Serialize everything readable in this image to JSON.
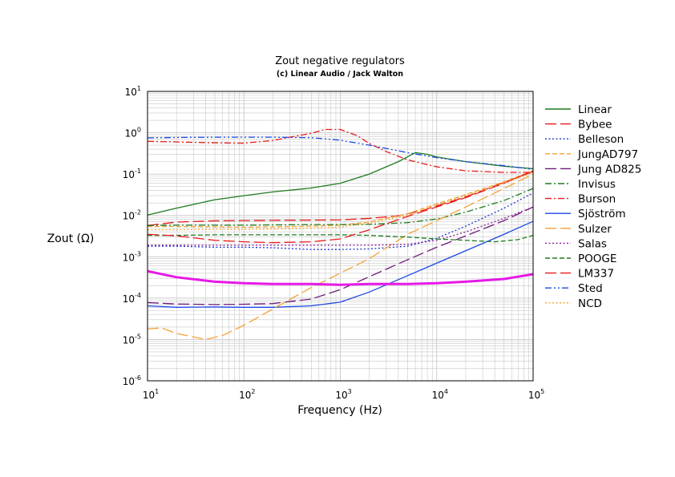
{
  "chart_data": {
    "type": "line",
    "title": "Zout negative regulators",
    "subtitle": "(c) Linear Audio / Jack Walton",
    "xlabel": "Frequency (Hz)",
    "ylabel": "Zout (Ω)",
    "x_scale": "log",
    "y_scale": "log",
    "xlim": [
      10,
      100000
    ],
    "ylim": [
      1e-06,
      10
    ],
    "x_ticks": [
      {
        "base": "10",
        "exp": "1"
      },
      {
        "base": "10",
        "exp": "2"
      },
      {
        "base": "10",
        "exp": "3"
      },
      {
        "base": "10",
        "exp": "4"
      },
      {
        "base": "10",
        "exp": "5"
      }
    ],
    "y_ticks": [
      {
        "base": "10",
        "exp": "1"
      },
      {
        "base": "10",
        "exp": "0"
      },
      {
        "base": "10",
        "exp": "-1"
      },
      {
        "base": "10",
        "exp": "-2"
      },
      {
        "base": "10",
        "exp": "-3"
      },
      {
        "base": "10",
        "exp": "-4"
      },
      {
        "base": "10",
        "exp": "-5"
      },
      {
        "base": "10",
        "exp": "-6"
      }
    ],
    "grid": true,
    "legend_position": "right",
    "series": [
      {
        "name": "Linear",
        "color": "#1e7b1e",
        "dash": "solid",
        "width": 1.3,
        "points": [
          [
            10,
            0.0102
          ],
          [
            20,
            0.015
          ],
          [
            50,
            0.024
          ],
          [
            100,
            0.03
          ],
          [
            200,
            0.037
          ],
          [
            500,
            0.046
          ],
          [
            1000,
            0.06
          ],
          [
            2000,
            0.1
          ],
          [
            4000,
            0.2
          ],
          [
            6000,
            0.33
          ],
          [
            8000,
            0.3
          ],
          [
            10000,
            0.26
          ],
          [
            20000,
            0.2
          ],
          [
            50000,
            0.155
          ],
          [
            100000,
            0.135
          ]
        ]
      },
      {
        "name": "Bybee",
        "color": "#e8191a",
        "dash": "long-dash",
        "width": 1.3,
        "points": [
          [
            10,
            0.0057
          ],
          [
            20,
            0.0069
          ],
          [
            50,
            0.0074
          ],
          [
            100,
            0.0075
          ],
          [
            200,
            0.0076
          ],
          [
            500,
            0.0077
          ],
          [
            1000,
            0.0078
          ],
          [
            2000,
            0.0085
          ],
          [
            4000,
            0.0098
          ],
          [
            7000,
            0.013
          ],
          [
            10000,
            0.017
          ],
          [
            20000,
            0.028
          ],
          [
            50000,
            0.063
          ],
          [
            100000,
            0.115
          ]
        ]
      },
      {
        "name": "Belleson",
        "color": "#1a33cc",
        "dash": "dot",
        "width": 1.3,
        "points": [
          [
            10,
            0.0018
          ],
          [
            20,
            0.0018
          ],
          [
            50,
            0.0017
          ],
          [
            100,
            0.0017
          ],
          [
            200,
            0.00165
          ],
          [
            500,
            0.0015
          ],
          [
            1000,
            0.0015
          ],
          [
            2000,
            0.00155
          ],
          [
            5000,
            0.0018
          ],
          [
            10000,
            0.0028
          ],
          [
            20000,
            0.0055
          ],
          [
            50000,
            0.015
          ],
          [
            100000,
            0.035
          ]
        ]
      },
      {
        "name": "JungAD797",
        "color": "#f4a236",
        "dash": "dash",
        "width": 1.3,
        "points": [
          [
            10,
            0.0054
          ],
          [
            20,
            0.0054
          ],
          [
            50,
            0.0053
          ],
          [
            100,
            0.0052
          ],
          [
            200,
            0.0053
          ],
          [
            500,
            0.0055
          ],
          [
            1000,
            0.0058
          ],
          [
            2000,
            0.007
          ],
          [
            5000,
            0.011
          ],
          [
            10000,
            0.019
          ],
          [
            20000,
            0.032
          ],
          [
            50000,
            0.065
          ],
          [
            100000,
            0.12
          ]
        ]
      },
      {
        "name": "Jung AD825",
        "color": "#6e1a78",
        "dash": "long-dash",
        "width": 1.3,
        "points": [
          [
            10,
            7.8e-05
          ],
          [
            20,
            7.2e-05
          ],
          [
            50,
            7e-05
          ],
          [
            100,
            7.1e-05
          ],
          [
            200,
            7.4e-05
          ],
          [
            500,
            9.5e-05
          ],
          [
            1000,
            0.00016
          ],
          [
            2000,
            0.00033
          ],
          [
            5000,
            0.00085
          ],
          [
            10000,
            0.0017
          ],
          [
            20000,
            0.0032
          ],
          [
            50000,
            0.0075
          ],
          [
            100000,
            0.016
          ]
        ]
      },
      {
        "name": "Invisus",
        "color": "#1e7b1e",
        "dash": "dash-dot",
        "width": 1.3,
        "points": [
          [
            10,
            0.0057
          ],
          [
            20,
            0.0058
          ],
          [
            50,
            0.0058
          ],
          [
            100,
            0.0058
          ],
          [
            200,
            0.0059
          ],
          [
            500,
            0.006
          ],
          [
            1000,
            0.006
          ],
          [
            2000,
            0.0061
          ],
          [
            5000,
            0.0067
          ],
          [
            10000,
            0.0082
          ],
          [
            20000,
            0.012
          ],
          [
            50000,
            0.023
          ],
          [
            100000,
            0.045
          ]
        ]
      },
      {
        "name": "Burson",
        "color": "#e8191a",
        "dash": "dash-dot",
        "width": 1.3,
        "points": [
          [
            10,
            0.62
          ],
          [
            20,
            0.6
          ],
          [
            50,
            0.57
          ],
          [
            100,
            0.56
          ],
          [
            200,
            0.65
          ],
          [
            300,
            0.78
          ],
          [
            500,
            0.97
          ],
          [
            700,
            1.2
          ],
          [
            1000,
            1.2
          ],
          [
            1500,
            0.85
          ],
          [
            2000,
            0.55
          ],
          [
            3000,
            0.35
          ],
          [
            5000,
            0.22
          ],
          [
            10000,
            0.15
          ],
          [
            20000,
            0.12
          ],
          [
            50000,
            0.11
          ],
          [
            100000,
            0.11
          ]
        ]
      },
      {
        "name": "Sjöström",
        "color": "#1a47e6",
        "dash": "solid",
        "width": 1.3,
        "points": [
          [
            10,
            6.5e-05
          ],
          [
            20,
            6e-05
          ],
          [
            50,
            6.1e-05
          ],
          [
            100,
            6e-05
          ],
          [
            200,
            6e-05
          ],
          [
            500,
            6.5e-05
          ],
          [
            1000,
            8e-05
          ],
          [
            2000,
            0.00014
          ],
          [
            5000,
            0.00035
          ],
          [
            10000,
            0.0007
          ],
          [
            20000,
            0.0014
          ],
          [
            50000,
            0.0035
          ],
          [
            100000,
            0.0072
          ]
        ]
      },
      {
        "name": "Sulzer",
        "color": "#f4a236",
        "dash": "long-dash",
        "width": 1.3,
        "points": [
          [
            10,
            1.8e-05
          ],
          [
            14,
            1.9e-05
          ],
          [
            20,
            1.4e-05
          ],
          [
            40,
            1e-05
          ],
          [
            60,
            1.25e-05
          ],
          [
            100,
            2.2e-05
          ],
          [
            200,
            5.5e-05
          ],
          [
            500,
            0.00018
          ],
          [
            1000,
            0.0004
          ],
          [
            2000,
            0.0009
          ],
          [
            5000,
            0.0035
          ],
          [
            10000,
            0.0075
          ],
          [
            20000,
            0.016
          ],
          [
            50000,
            0.045
          ],
          [
            100000,
            0.1
          ]
        ]
      },
      {
        "name": "Salas",
        "color": "#8a1a99",
        "dash": "dot",
        "width": 1.3,
        "points": [
          [
            10,
            0.0019
          ],
          [
            20,
            0.0019
          ],
          [
            50,
            0.0019
          ],
          [
            100,
            0.0019
          ],
          [
            200,
            0.0019
          ],
          [
            500,
            0.0019
          ],
          [
            1000,
            0.0019
          ],
          [
            2000,
            0.0019
          ],
          [
            5000,
            0.002
          ],
          [
            10000,
            0.0025
          ],
          [
            20000,
            0.004
          ],
          [
            50000,
            0.0085
          ],
          [
            100000,
            0.016
          ]
        ]
      },
      {
        "name": "POOGE",
        "color": "#1e7b1e",
        "dash": "dash",
        "width": 1.3,
        "points": [
          [
            10,
            0.0033
          ],
          [
            20,
            0.0033
          ],
          [
            50,
            0.0034
          ],
          [
            100,
            0.0034
          ],
          [
            200,
            0.0034
          ],
          [
            500,
            0.0034
          ],
          [
            1000,
            0.0034
          ],
          [
            2000,
            0.0033
          ],
          [
            5000,
            0.003
          ],
          [
            10000,
            0.0027
          ],
          [
            20000,
            0.0025
          ],
          [
            40000,
            0.0023
          ],
          [
            70000,
            0.0026
          ],
          [
            100000,
            0.0033
          ]
        ]
      },
      {
        "name": "LM337",
        "color": "#e8191a",
        "dash": "long-dash",
        "width": 1.3,
        "points": [
          [
            10,
            0.0035
          ],
          [
            20,
            0.0032
          ],
          [
            50,
            0.0025
          ],
          [
            100,
            0.0023
          ],
          [
            200,
            0.0022
          ],
          [
            500,
            0.0023
          ],
          [
            1000,
            0.0027
          ],
          [
            2000,
            0.0045
          ],
          [
            5000,
            0.0095
          ],
          [
            10000,
            0.016
          ],
          [
            20000,
            0.027
          ],
          [
            50000,
            0.06
          ],
          [
            100000,
            0.12
          ]
        ]
      },
      {
        "name": "Sted",
        "color": "#1a47e6",
        "dash": "dash-dot-dot",
        "width": 1.3,
        "points": [
          [
            10,
            0.75
          ],
          [
            20,
            0.77
          ],
          [
            50,
            0.78
          ],
          [
            100,
            0.78
          ],
          [
            200,
            0.78
          ],
          [
            500,
            0.76
          ],
          [
            1000,
            0.66
          ],
          [
            2000,
            0.5
          ],
          [
            5000,
            0.33
          ],
          [
            10000,
            0.25
          ],
          [
            20000,
            0.2
          ],
          [
            50000,
            0.16
          ],
          [
            100000,
            0.13
          ]
        ]
      },
      {
        "name": "NCD",
        "color": "#f4a236",
        "dash": "dot",
        "width": 1.3,
        "points": [
          [
            10,
            0.0045
          ],
          [
            20,
            0.0045
          ],
          [
            50,
            0.0046
          ],
          [
            100,
            0.0046
          ],
          [
            200,
            0.0047
          ],
          [
            500,
            0.0049
          ],
          [
            1000,
            0.0052
          ],
          [
            2000,
            0.0065
          ],
          [
            5000,
            0.01
          ],
          [
            10000,
            0.018
          ],
          [
            20000,
            0.03
          ],
          [
            50000,
            0.06
          ],
          [
            100000,
            0.11
          ]
        ]
      },
      {
        "name": "",
        "color": "#e619e6",
        "dash": "solid",
        "width": 3,
        "points": [
          [
            10,
            0.00045
          ],
          [
            20,
            0.00032
          ],
          [
            50,
            0.00025
          ],
          [
            100,
            0.00023
          ],
          [
            200,
            0.00022
          ],
          [
            500,
            0.00022
          ],
          [
            1000,
            0.00021
          ],
          [
            2000,
            0.00022
          ],
          [
            5000,
            0.00022
          ],
          [
            10000,
            0.00023
          ],
          [
            20000,
            0.00025
          ],
          [
            50000,
            0.00029
          ],
          [
            100000,
            0.00038
          ]
        ]
      }
    ]
  }
}
